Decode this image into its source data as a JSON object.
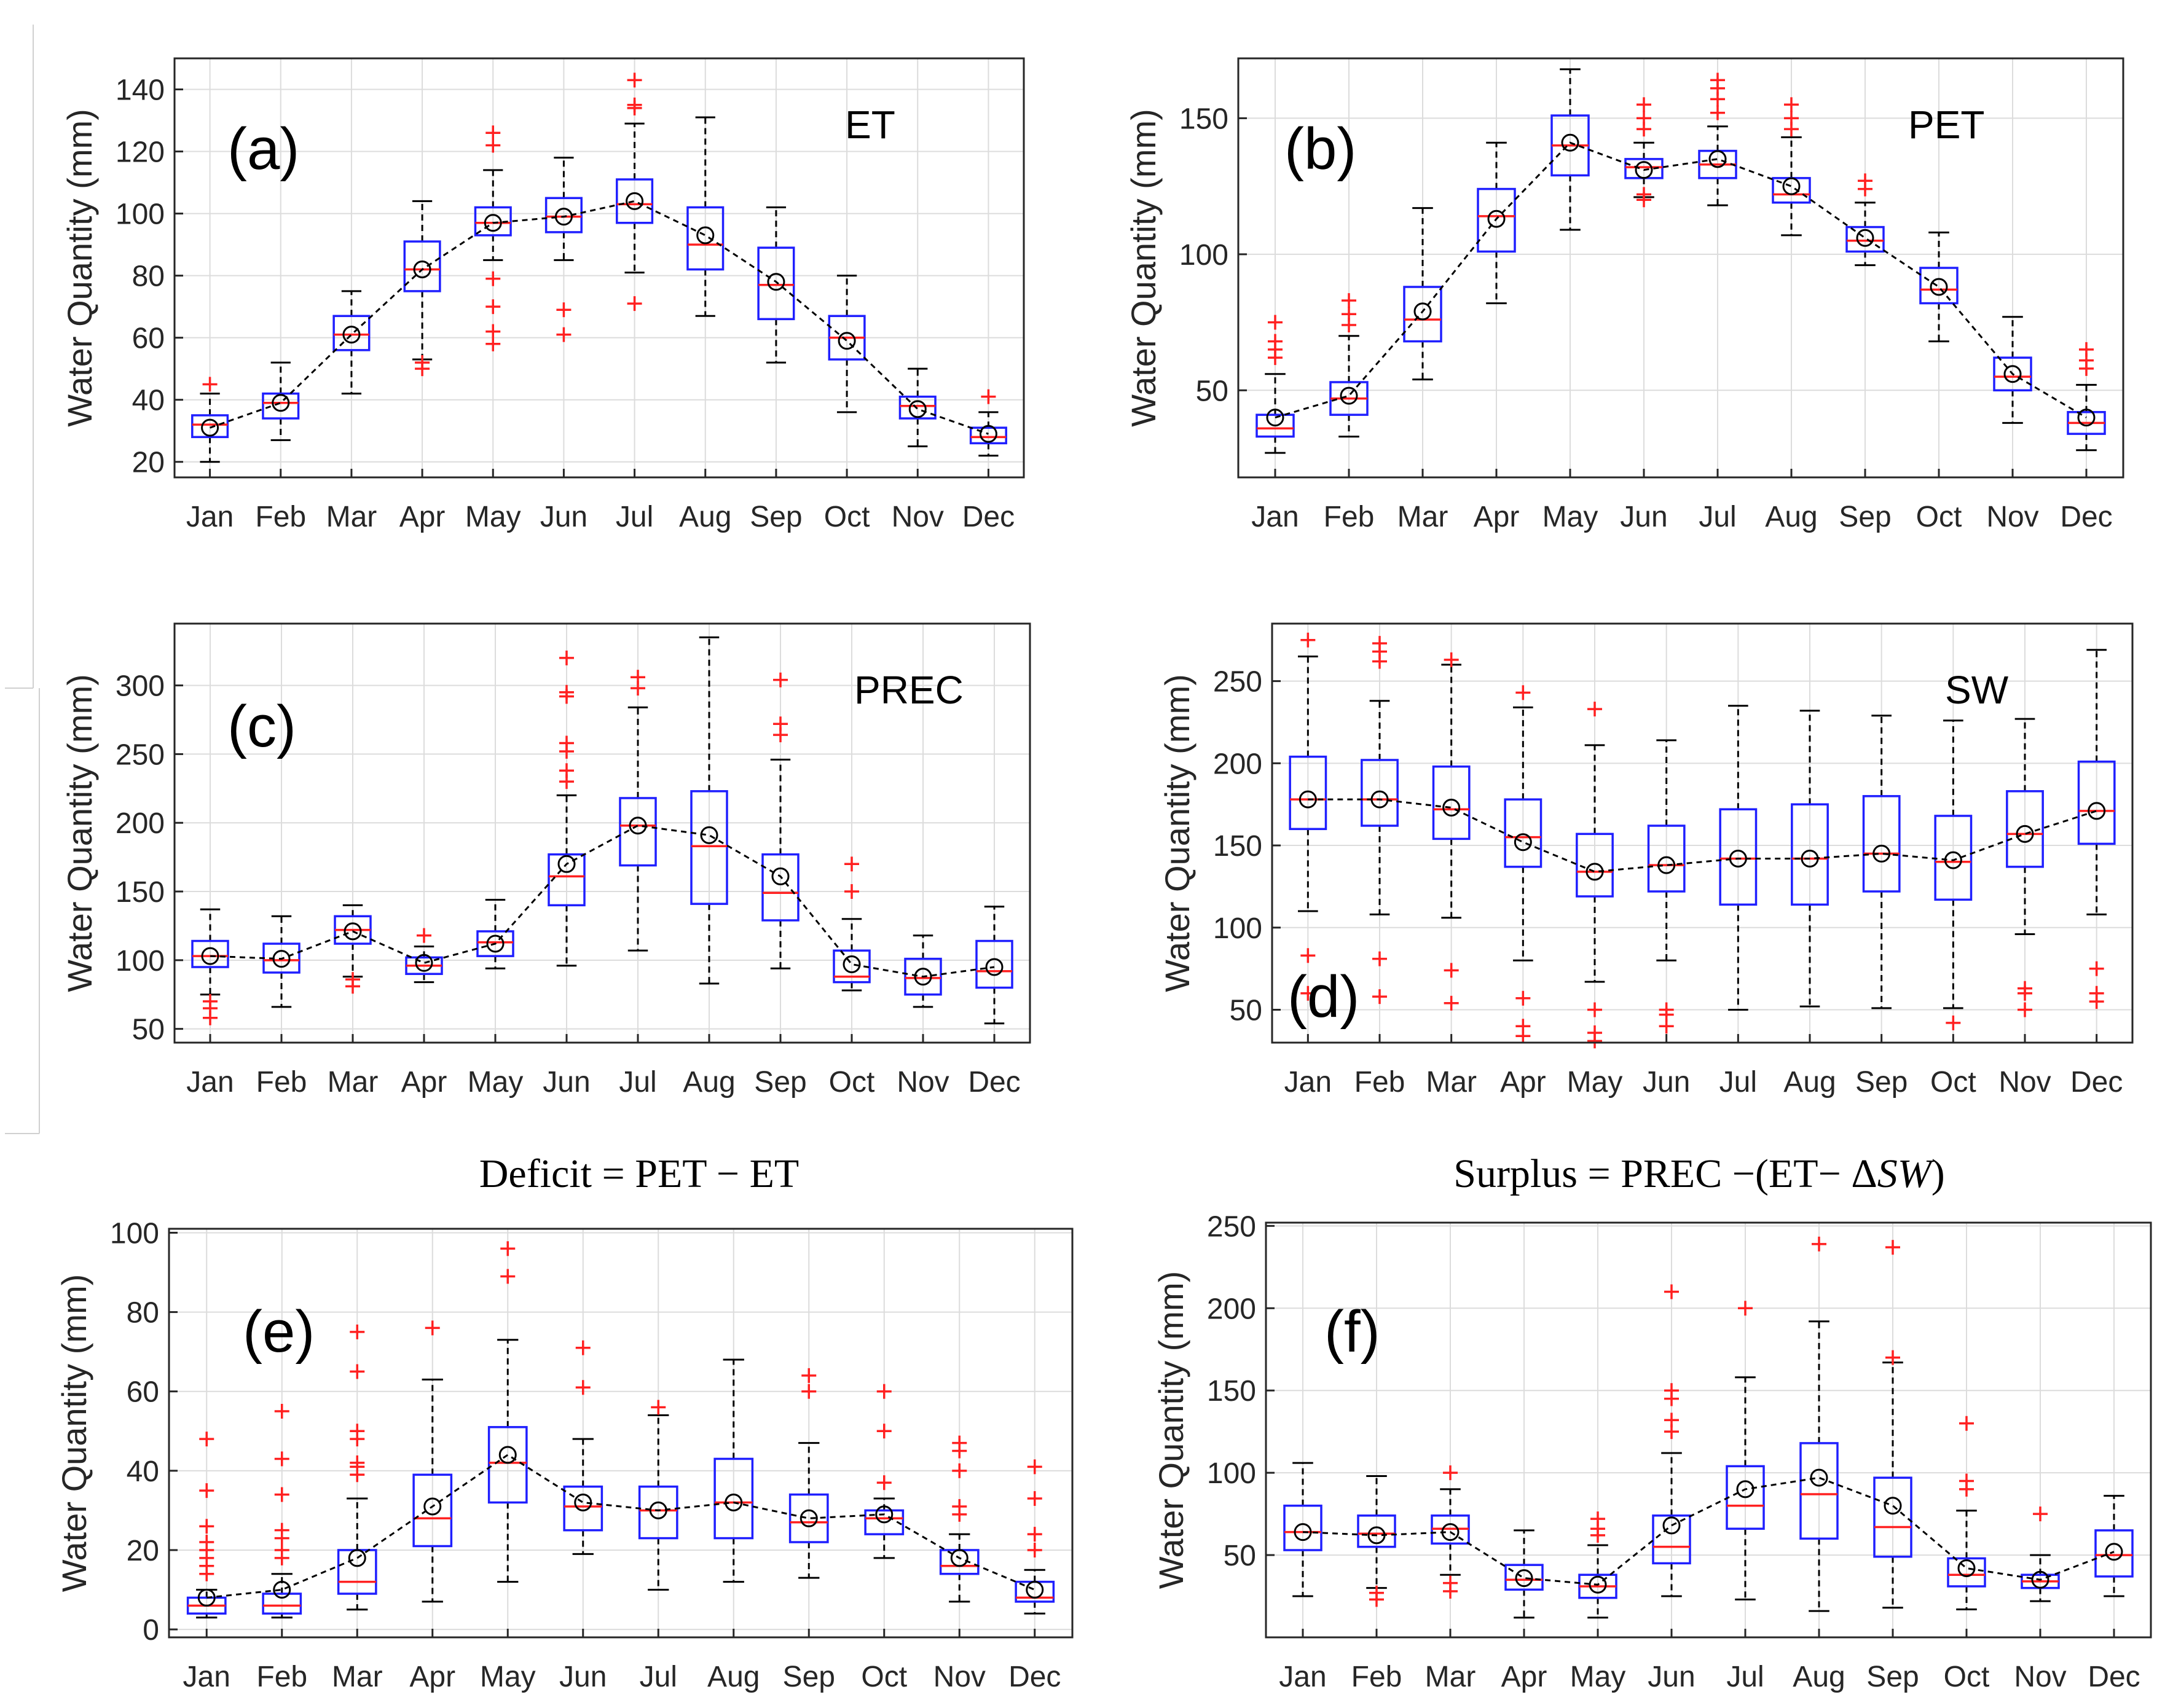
{
  "figure": {
    "formulas": {
      "deficit": {
        "lhs": "Deficit",
        "eq": " = ",
        "rhs": "PET − ET"
      },
      "surplus": {
        "lhs": "Surplus",
        "eq": " = ",
        "rhs_a": "PREC −(ET− Δ",
        "rhs_sw": "SW",
        "rhs_close": ")"
      }
    }
  },
  "chart_data": [
    {
      "id": "a",
      "type": "box",
      "panel_label": "(a)",
      "var_label": "ET",
      "ylabel": "Water Quantity (mm)",
      "ylim": [
        15,
        150
      ],
      "yticks": [
        20,
        40,
        60,
        80,
        100,
        120,
        140
      ],
      "categories": [
        "Jan",
        "Feb",
        "Mar",
        "Apr",
        "May",
        "Jun",
        "Jul",
        "Aug",
        "Sep",
        "Oct",
        "Nov",
        "Dec"
      ],
      "boxes": [
        {
          "wlo": 20,
          "q1": 28,
          "med": 32,
          "q3": 35,
          "whi": 42,
          "mean": 31,
          "out": [
            45
          ]
        },
        {
          "wlo": 27,
          "q1": 34,
          "med": 39,
          "q3": 42,
          "whi": 52,
          "mean": 39,
          "out": []
        },
        {
          "wlo": 42,
          "q1": 56,
          "med": 61,
          "q3": 67,
          "whi": 75,
          "mean": 61,
          "out": []
        },
        {
          "wlo": 53,
          "q1": 75,
          "med": 82,
          "q3": 91,
          "whi": 104,
          "mean": 82,
          "out": [
            50,
            52
          ]
        },
        {
          "wlo": 85,
          "q1": 93,
          "med": 97,
          "q3": 102,
          "whi": 114,
          "mean": 97,
          "out": [
            58,
            62,
            70,
            79,
            122,
            126
          ]
        },
        {
          "wlo": 85,
          "q1": 94,
          "med": 99,
          "q3": 105,
          "whi": 118,
          "mean": 99,
          "out": [
            61,
            69
          ]
        },
        {
          "wlo": 81,
          "q1": 97,
          "med": 103,
          "q3": 111,
          "whi": 129,
          "mean": 104,
          "out": [
            71,
            134,
            135,
            143
          ]
        },
        {
          "wlo": 67,
          "q1": 82,
          "med": 90,
          "q3": 102,
          "whi": 131,
          "mean": 93,
          "out": []
        },
        {
          "wlo": 52,
          "q1": 66,
          "med": 77,
          "q3": 89,
          "whi": 102,
          "mean": 78,
          "out": []
        },
        {
          "wlo": 36,
          "q1": 53,
          "med": 60,
          "q3": 67,
          "whi": 80,
          "mean": 59,
          "out": []
        },
        {
          "wlo": 25,
          "q1": 34,
          "med": 38,
          "q3": 41,
          "whi": 50,
          "mean": 37,
          "out": []
        },
        {
          "wlo": 22,
          "q1": 26,
          "med": 28,
          "q3": 31,
          "whi": 36,
          "mean": 29,
          "out": [
            41
          ]
        }
      ]
    },
    {
      "id": "b",
      "type": "box",
      "panel_label": "(b)",
      "var_label": "PET",
      "ylabel": "Water Quantity (mm)",
      "ylim": [
        18,
        172
      ],
      "yticks": [
        50,
        100,
        150
      ],
      "categories": [
        "Jan",
        "Feb",
        "Mar",
        "Apr",
        "May",
        "Jun",
        "Jul",
        "Aug",
        "Sep",
        "Oct",
        "Nov",
        "Dec"
      ],
      "boxes": [
        {
          "wlo": 27,
          "q1": 33,
          "med": 36,
          "q3": 41,
          "whi": 56,
          "mean": 40,
          "out": [
            62,
            65,
            68,
            75
          ]
        },
        {
          "wlo": 33,
          "q1": 41,
          "med": 47,
          "q3": 53,
          "whi": 70,
          "mean": 48,
          "out": [
            74,
            78,
            83
          ]
        },
        {
          "wlo": 54,
          "q1": 68,
          "med": 76,
          "q3": 88,
          "whi": 117,
          "mean": 79,
          "out": []
        },
        {
          "wlo": 82,
          "q1": 101,
          "med": 114,
          "q3": 124,
          "whi": 141,
          "mean": 113,
          "out": []
        },
        {
          "wlo": 109,
          "q1": 129,
          "med": 140,
          "q3": 151,
          "whi": 168,
          "mean": 141,
          "out": []
        },
        {
          "wlo": 121,
          "q1": 128,
          "med": 132,
          "q3": 135,
          "whi": 141,
          "mean": 131,
          "out": [
            120,
            122,
            146,
            150,
            155
          ]
        },
        {
          "wlo": 118,
          "q1": 128,
          "med": 133,
          "q3": 138,
          "whi": 147,
          "mean": 135,
          "out": [
            152,
            157,
            161,
            164
          ]
        },
        {
          "wlo": 107,
          "q1": 119,
          "med": 122,
          "q3": 128,
          "whi": 143,
          "mean": 125,
          "out": [
            146,
            150,
            155
          ]
        },
        {
          "wlo": 96,
          "q1": 101,
          "med": 105,
          "q3": 110,
          "whi": 119,
          "mean": 106,
          "out": [
            124,
            127
          ]
        },
        {
          "wlo": 68,
          "q1": 82,
          "med": 87,
          "q3": 95,
          "whi": 108,
          "mean": 88,
          "out": []
        },
        {
          "wlo": 38,
          "q1": 50,
          "med": 55,
          "q3": 62,
          "whi": 77,
          "mean": 56,
          "out": []
        },
        {
          "wlo": 28,
          "q1": 34,
          "med": 38,
          "q3": 42,
          "whi": 52,
          "mean": 40,
          "out": [
            58,
            61,
            65
          ]
        }
      ]
    },
    {
      "id": "c",
      "type": "box",
      "panel_label": "(c)",
      "var_label": "PREC",
      "ylabel": "Water Quantity (mm)",
      "ylim": [
        40,
        345
      ],
      "yticks": [
        50,
        100,
        150,
        200,
        250,
        300
      ],
      "categories": [
        "Jan",
        "Feb",
        "Mar",
        "Apr",
        "May",
        "Jun",
        "Jul",
        "Aug",
        "Sep",
        "Oct",
        "Nov",
        "Dec"
      ],
      "boxes": [
        {
          "wlo": 75,
          "q1": 95,
          "med": 103,
          "q3": 114,
          "whi": 137,
          "mean": 103,
          "out": [
            58,
            65,
            70
          ]
        },
        {
          "wlo": 66,
          "q1": 91,
          "med": 100,
          "q3": 112,
          "whi": 132,
          "mean": 101,
          "out": []
        },
        {
          "wlo": 88,
          "q1": 112,
          "med": 122,
          "q3": 132,
          "whi": 140,
          "mean": 121,
          "out": [
            81,
            86
          ]
        },
        {
          "wlo": 84,
          "q1": 90,
          "med": 96,
          "q3": 102,
          "whi": 110,
          "mean": 98,
          "out": [
            118
          ]
        },
        {
          "wlo": 94,
          "q1": 103,
          "med": 113,
          "q3": 121,
          "whi": 144,
          "mean": 112,
          "out": []
        },
        {
          "wlo": 96,
          "q1": 140,
          "med": 161,
          "q3": 177,
          "whi": 220,
          "mean": 170,
          "out": [
            230,
            238,
            252,
            258,
            292,
            295,
            320
          ]
        },
        {
          "wlo": 107,
          "q1": 169,
          "med": 198,
          "q3": 218,
          "whi": 284,
          "mean": 198,
          "out": [
            298,
            306
          ]
        },
        {
          "wlo": 83,
          "q1": 141,
          "med": 183,
          "q3": 223,
          "whi": 335,
          "mean": 191,
          "out": []
        },
        {
          "wlo": 94,
          "q1": 129,
          "med": 149,
          "q3": 177,
          "whi": 246,
          "mean": 161,
          "out": [
            264,
            272,
            304
          ]
        },
        {
          "wlo": 78,
          "q1": 84,
          "med": 88,
          "q3": 107,
          "whi": 130,
          "mean": 97,
          "out": [
            150,
            170
          ]
        },
        {
          "wlo": 66,
          "q1": 75,
          "med": 87,
          "q3": 101,
          "whi": 118,
          "mean": 88,
          "out": []
        },
        {
          "wlo": 54,
          "q1": 80,
          "med": 92,
          "q3": 114,
          "whi": 139,
          "mean": 95,
          "out": []
        }
      ]
    },
    {
      "id": "d",
      "type": "box",
      "panel_label": "(d)",
      "var_label": "SW",
      "ylabel": "Water Quantity (mm)",
      "ylim": [
        30,
        285
      ],
      "yticks": [
        50,
        100,
        150,
        200,
        250
      ],
      "categories": [
        "Jan",
        "Feb",
        "Mar",
        "Apr",
        "May",
        "Jun",
        "Jul",
        "Aug",
        "Sep",
        "Oct",
        "Nov",
        "Dec"
      ],
      "boxes": [
        {
          "wlo": 110,
          "q1": 160,
          "med": 178,
          "q3": 204,
          "whi": 265,
          "mean": 178,
          "out": [
            60,
            83,
            275
          ]
        },
        {
          "wlo": 108,
          "q1": 162,
          "med": 178,
          "q3": 202,
          "whi": 238,
          "mean": 178,
          "out": [
            58,
            81,
            262,
            268,
            273
          ]
        },
        {
          "wlo": 106,
          "q1": 154,
          "med": 172,
          "q3": 198,
          "whi": 260,
          "mean": 173,
          "out": [
            54,
            74,
            263
          ]
        },
        {
          "wlo": 80,
          "q1": 137,
          "med": 155,
          "q3": 178,
          "whi": 234,
          "mean": 152,
          "out": [
            34,
            40,
            57,
            243
          ]
        },
        {
          "wlo": 67,
          "q1": 119,
          "med": 134,
          "q3": 157,
          "whi": 211,
          "mean": 134,
          "out": [
            31,
            36,
            50,
            233
          ]
        },
        {
          "wlo": 80,
          "q1": 122,
          "med": 138,
          "q3": 162,
          "whi": 214,
          "mean": 138,
          "out": [
            40,
            47,
            50
          ]
        },
        {
          "wlo": 50,
          "q1": 114,
          "med": 142,
          "q3": 172,
          "whi": 235,
          "mean": 142,
          "out": []
        },
        {
          "wlo": 52,
          "q1": 114,
          "med": 142,
          "q3": 175,
          "whi": 232,
          "mean": 142,
          "out": []
        },
        {
          "wlo": 51,
          "q1": 122,
          "med": 145,
          "q3": 180,
          "whi": 229,
          "mean": 145,
          "out": []
        },
        {
          "wlo": 51,
          "q1": 117,
          "med": 140,
          "q3": 168,
          "whi": 226,
          "mean": 141,
          "out": [
            42
          ]
        },
        {
          "wlo": 96,
          "q1": 137,
          "med": 157,
          "q3": 183,
          "whi": 227,
          "mean": 157,
          "out": [
            50,
            60,
            63
          ]
        },
        {
          "wlo": 108,
          "q1": 151,
          "med": 171,
          "q3": 201,
          "whi": 269,
          "mean": 171,
          "out": [
            55,
            60,
            75
          ]
        }
      ]
    },
    {
      "id": "e",
      "type": "box",
      "panel_label": "(e)",
      "var_label": "",
      "ylabel": "Water Quantity (mm)",
      "ylim": [
        -2,
        101
      ],
      "yticks": [
        0,
        20,
        40,
        60,
        80,
        100
      ],
      "categories": [
        "Jan",
        "Feb",
        "Mar",
        "Apr",
        "May",
        "Jun",
        "Jul",
        "Aug",
        "Sep",
        "Oct",
        "Nov",
        "Dec"
      ],
      "boxes": [
        {
          "wlo": 3,
          "q1": 4,
          "med": 6,
          "q3": 8,
          "whi": 10,
          "mean": 8,
          "out": [
            14,
            16,
            18,
            20,
            22,
            26,
            35,
            48
          ]
        },
        {
          "wlo": 3,
          "q1": 4,
          "med": 6,
          "q3": 9,
          "whi": 14,
          "mean": 10,
          "out": [
            18,
            20,
            23,
            25,
            34,
            43,
            55
          ]
        },
        {
          "wlo": 5,
          "q1": 9,
          "med": 12,
          "q3": 20,
          "whi": 33,
          "mean": 18,
          "out": [
            39,
            41,
            42,
            48,
            50,
            65,
            75
          ]
        },
        {
          "wlo": 7,
          "q1": 21,
          "med": 28,
          "q3": 39,
          "whi": 63,
          "mean": 31,
          "out": [
            76
          ]
        },
        {
          "wlo": 12,
          "q1": 32,
          "med": 42,
          "q3": 51,
          "whi": 73,
          "mean": 44,
          "out": [
            89,
            96
          ]
        },
        {
          "wlo": 19,
          "q1": 25,
          "med": 31,
          "q3": 36,
          "whi": 48,
          "mean": 32,
          "out": [
            61,
            71
          ]
        },
        {
          "wlo": 10,
          "q1": 23,
          "med": 30,
          "q3": 36,
          "whi": 54,
          "mean": 30,
          "out": [
            56
          ]
        },
        {
          "wlo": 12,
          "q1": 23,
          "med": 32,
          "q3": 43,
          "whi": 68,
          "mean": 32,
          "out": []
        },
        {
          "wlo": 13,
          "q1": 22,
          "med": 27,
          "q3": 34,
          "whi": 47,
          "mean": 28,
          "out": [
            60,
            64
          ]
        },
        {
          "wlo": 18,
          "q1": 24,
          "med": 28,
          "q3": 30,
          "whi": 33,
          "mean": 29,
          "out": [
            37,
            50,
            60
          ]
        },
        {
          "wlo": 7,
          "q1": 14,
          "med": 16,
          "q3": 20,
          "whi": 24,
          "mean": 18,
          "out": [
            29,
            31,
            40,
            45,
            47
          ]
        },
        {
          "wlo": 4,
          "q1": 7,
          "med": 8,
          "q3": 12,
          "whi": 15,
          "mean": 10,
          "out": [
            20,
            24,
            33,
            41
          ]
        }
      ]
    },
    {
      "id": "f",
      "type": "box",
      "panel_label": "(f)",
      "var_label": "",
      "ylabel": "Water Quantity (mm)",
      "ylim": [
        0,
        252
      ],
      "yticks": [
        50,
        100,
        150,
        200,
        250
      ],
      "categories": [
        "Jan",
        "Feb",
        "Mar",
        "Apr",
        "May",
        "Jun",
        "Jul",
        "Aug",
        "Sep",
        "Oct",
        "Nov",
        "Dec"
      ],
      "boxes": [
        {
          "wlo": 25,
          "q1": 53,
          "med": 64,
          "q3": 80,
          "whi": 106,
          "mean": 64,
          "out": []
        },
        {
          "wlo": 30,
          "q1": 55,
          "med": 63,
          "q3": 74,
          "whi": 98,
          "mean": 62,
          "out": [
            23,
            27
          ]
        },
        {
          "wlo": 38,
          "q1": 57,
          "med": 66,
          "q3": 74,
          "whi": 90,
          "mean": 64,
          "out": [
            28,
            33,
            100
          ]
        },
        {
          "wlo": 12,
          "q1": 29,
          "med": 35,
          "q3": 44,
          "whi": 65,
          "mean": 36,
          "out": []
        },
        {
          "wlo": 12,
          "q1": 24,
          "med": 31,
          "q3": 38,
          "whi": 56,
          "mean": 32,
          "out": [
            62,
            66,
            72
          ]
        },
        {
          "wlo": 25,
          "q1": 45,
          "med": 55,
          "q3": 74,
          "whi": 112,
          "mean": 68,
          "out": [
            125,
            132,
            145,
            150,
            210
          ]
        },
        {
          "wlo": 23,
          "q1": 66,
          "med": 80,
          "q3": 104,
          "whi": 158,
          "mean": 90,
          "out": [
            200
          ]
        },
        {
          "wlo": 16,
          "q1": 60,
          "med": 87,
          "q3": 118,
          "whi": 192,
          "mean": 97,
          "out": [
            239
          ]
        },
        {
          "wlo": 18,
          "q1": 49,
          "med": 67,
          "q3": 97,
          "whi": 167,
          "mean": 80,
          "out": [
            170,
            237
          ]
        },
        {
          "wlo": 17,
          "q1": 31,
          "med": 38,
          "q3": 48,
          "whi": 77,
          "mean": 42,
          "out": [
            90,
            95,
            130
          ]
        },
        {
          "wlo": 22,
          "q1": 30,
          "med": 34,
          "q3": 38,
          "whi": 50,
          "mean": 35,
          "out": [
            75
          ]
        },
        {
          "wlo": 25,
          "q1": 37,
          "med": 50,
          "q3": 65,
          "whi": 86,
          "mean": 52,
          "out": []
        }
      ]
    }
  ]
}
